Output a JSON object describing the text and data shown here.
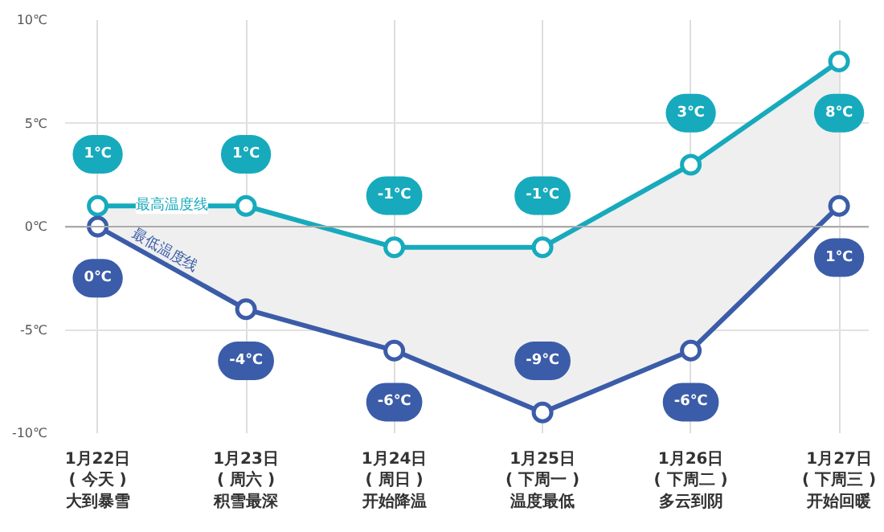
{
  "chart_data": {
    "type": "line",
    "categories": [
      "1月22日\n( 今天 )\n大到暴雪",
      "1月23日\n( 周六 )\n积雪最深",
      "1月24日\n( 周日 )\n开始降温",
      "1月25日\n( 下周一 )\n温度最低",
      "1月26日\n( 下周二 )\n多云到阴",
      "1月27日\n( 下周三 )\n开始回暖"
    ],
    "series": [
      {
        "name": "最高温度线",
        "color": "#17aabd",
        "values": [
          1,
          1,
          -1,
          -1,
          3,
          8
        ],
        "lower": [
          0,
          -4,
          -6,
          -9,
          -6,
          1
        ],
        "upper": [
          1,
          1,
          -1,
          -1,
          3,
          8
        ],
        "value_labels": [
          "1℃",
          "1℃",
          "-1℃",
          "-1℃",
          "3℃",
          "8℃"
        ]
      },
      {
        "name": "最低温度线",
        "color": "#3b5ca8",
        "values": [
          0,
          -4,
          -6,
          -9,
          -6,
          1
        ],
        "value_labels": [
          "0℃",
          "-4℃",
          "-6℃",
          "-9℃",
          "-6℃",
          "1℃"
        ]
      }
    ],
    "ylim": [
      -10,
      10
    ],
    "yticks": [
      {
        "value": -10,
        "label": "-10℃"
      },
      {
        "value": -5,
        "label": "-5℃"
      },
      {
        "value": 0,
        "label": "0℃"
      },
      {
        "value": 5,
        "label": "5℃"
      },
      {
        "value": 10,
        "label": "10℃"
      }
    ],
    "grid": true,
    "marker": "circle",
    "line_style": "solid"
  }
}
